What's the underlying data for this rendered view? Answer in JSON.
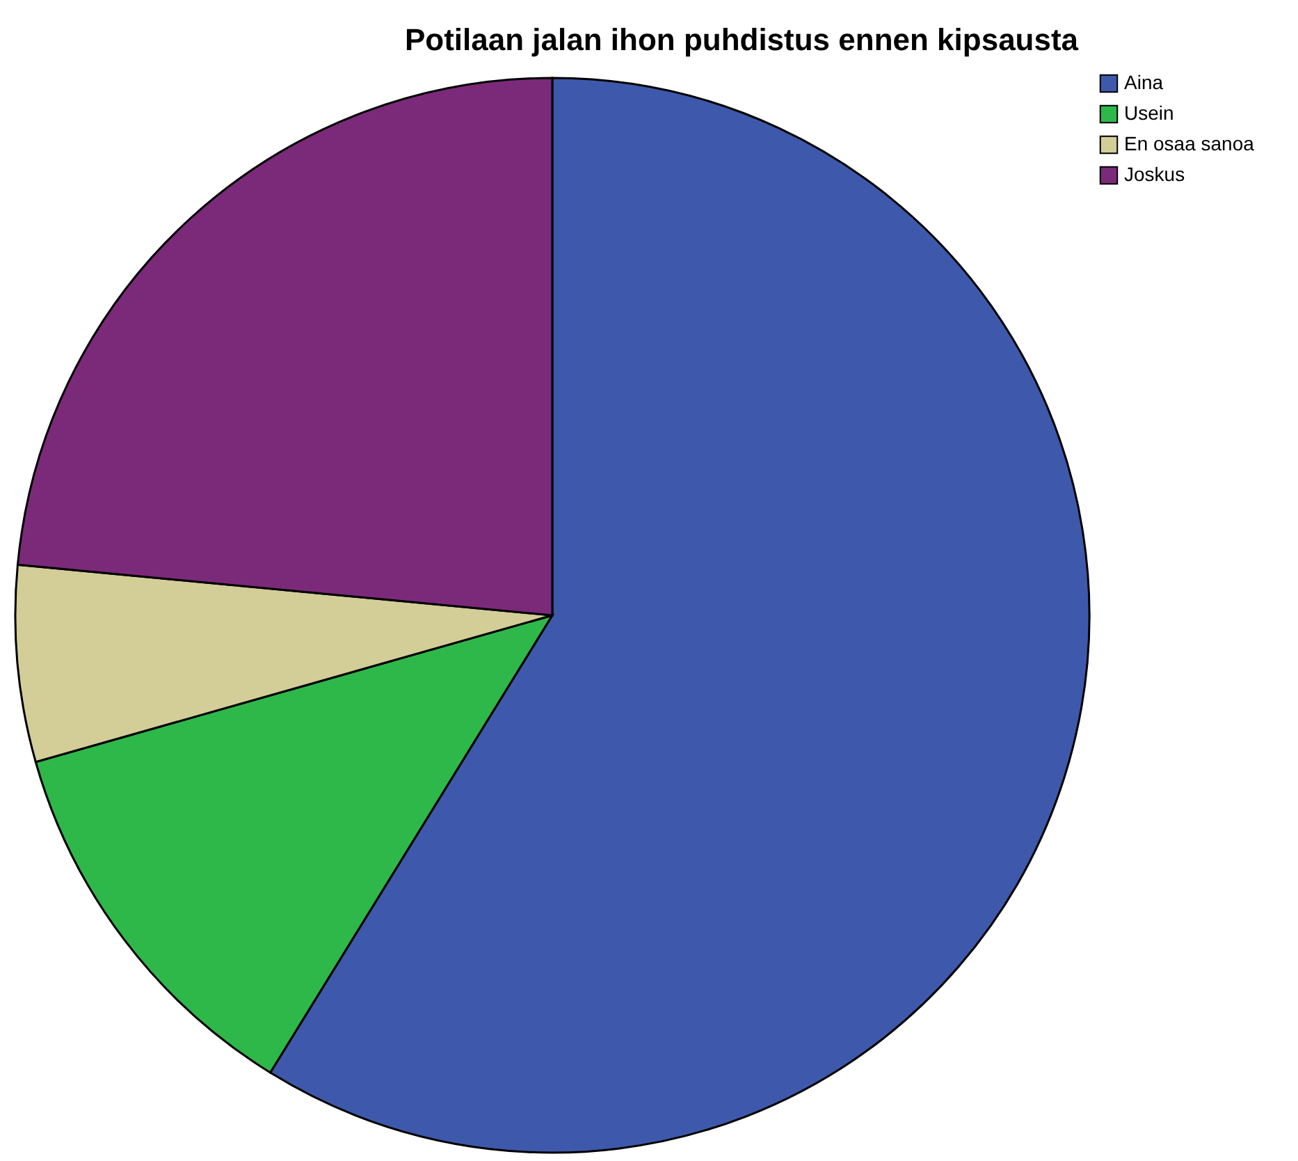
{
  "chart_data": {
    "type": "pie",
    "title": "Potilaan jalan ihon puhdistus ennen kipsausta",
    "categories": [
      "Aina",
      "Usein",
      "En osaa sanoa",
      "Joskus"
    ],
    "values": [
      58.8,
      11.8,
      5.9,
      23.5
    ],
    "colors": [
      "#3e59ab",
      "#2eb84a",
      "#d3cd98",
      "#7b2a7a"
    ],
    "legend": "top right"
  }
}
